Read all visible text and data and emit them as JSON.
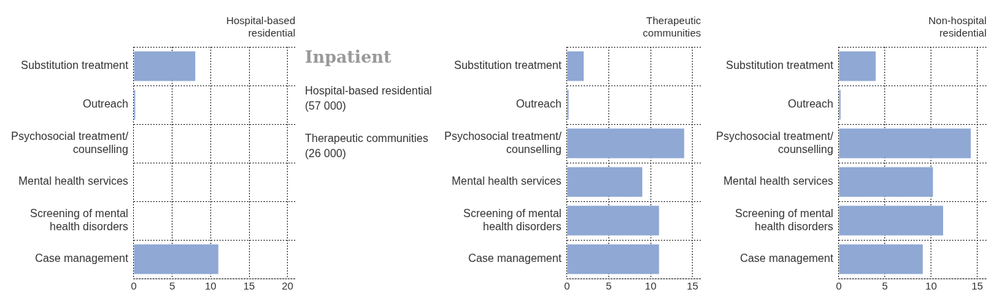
{
  "chart_data": [
    {
      "type": "bar",
      "orientation": "horizontal",
      "title": "Hospital-based residential",
      "categories": [
        "Substitution treatment",
        "Outreach",
        "Psychosocial treatment/ counselling",
        "Mental health services",
        "Screening of mental health disorders",
        "Case management"
      ],
      "series": [
        {
          "color": "#8fa8d4",
          "values": [
            8,
            0.2,
            null,
            null,
            null,
            11
          ]
        }
      ],
      "xlim": [
        0,
        21
      ],
      "xticks": [
        0,
        5,
        10,
        15,
        20
      ],
      "grid": true
    },
    {
      "type": "other",
      "title": "Inpatient",
      "annotations": [
        "Hospital-based residential (57 000)",
        "Therapeutic communities (26 000)"
      ]
    },
    {
      "type": "bar",
      "orientation": "horizontal",
      "title": "Therapeutic communities",
      "categories": [
        "Substitution treatment",
        "Outreach",
        "Psychosocial treatment/ counselling",
        "Mental health services",
        "Screening of mental health disorders",
        "Case management"
      ],
      "series": [
        {
          "color": "#8fa8d4",
          "values": [
            2,
            0.2,
            14,
            9,
            11,
            11
          ]
        }
      ],
      "xlim": [
        0,
        16
      ],
      "xticks": [
        0,
        5,
        10,
        15
      ],
      "grid": true
    },
    {
      "type": "bar",
      "orientation": "horizontal",
      "title": "Non-hospital residential",
      "categories": [
        "Substitution treatment",
        "Outreach",
        "Psychosocial treatment/ counselling",
        "Mental health services",
        "Screening of mental health disorders",
        "Case management"
      ],
      "series": [
        {
          "color": "#8fa8d4",
          "values": [
            4,
            0.2,
            14.3,
            10.2,
            11.3,
            9.1
          ]
        }
      ],
      "xlim": [
        0,
        16
      ],
      "xticks": [
        0,
        5,
        10,
        15
      ],
      "grid": true
    }
  ]
}
